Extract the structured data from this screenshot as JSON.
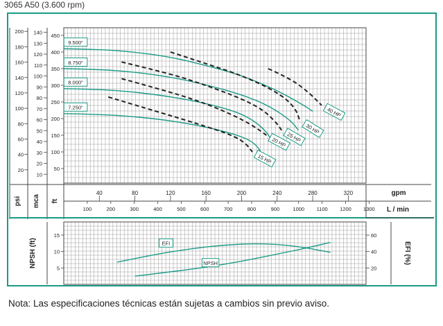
{
  "title": "3065 A50 (3.600 rpm)",
  "note": "Nota: Las especificaciones técnicas están sujetas a cambios sin previo aviso.",
  "chart_data": {
    "type": "line",
    "axes": {
      "left_psi": {
        "label": "psi",
        "ticks": [
          20,
          40,
          60,
          80,
          100,
          120,
          140,
          160,
          180,
          200
        ]
      },
      "left_mca": {
        "label": "mca",
        "ticks": [
          10,
          20,
          30,
          40,
          50,
          60,
          70,
          80,
          90,
          100,
          110,
          120,
          130,
          140
        ]
      },
      "left_ft": {
        "label": "ft",
        "ticks": [
          50,
          100,
          150,
          200,
          250,
          300,
          350,
          400,
          450
        ]
      },
      "x_gpm": {
        "label": "gpm",
        "ticks": [
          40,
          80,
          120,
          160,
          200,
          240,
          280,
          320
        ],
        "range": [
          0,
          340
        ]
      },
      "x_lmin": {
        "label": "L / min",
        "ticks": [
          100,
          200,
          300,
          400,
          500,
          600,
          700,
          800,
          900,
          1000,
          1100,
          1200,
          1300
        ]
      },
      "npsh": {
        "label": "NPSH (ft)",
        "ticks": [
          5,
          10,
          15
        ],
        "range": [
          0,
          19
        ]
      },
      "efi": {
        "label": "EFI (%)",
        "ticks": [
          20,
          40,
          60
        ],
        "range": [
          0,
          76
        ]
      }
    },
    "impeller_series": [
      {
        "name": "9.500\"",
        "x": [
          0,
          40,
          80,
          120,
          160,
          200,
          240,
          270,
          280
        ],
        "y": [
          410,
          408,
          400,
          385,
          360,
          330,
          285,
          240,
          222
        ]
      },
      {
        "name": "8.750\"",
        "x": [
          0,
          40,
          80,
          120,
          160,
          200,
          230,
          255,
          264
        ],
        "y": [
          350,
          348,
          340,
          325,
          302,
          272,
          240,
          195,
          165
        ]
      },
      {
        "name": "8.000\"",
        "x": [
          0,
          40,
          80,
          120,
          160,
          195,
          215,
          230,
          234
        ],
        "y": [
          290,
          288,
          280,
          266,
          246,
          220,
          192,
          155,
          130
        ]
      },
      {
        "name": "7.250\"",
        "x": [
          0,
          40,
          80,
          120,
          160,
          190,
          210,
          220,
          222
        ],
        "y": [
          215,
          213,
          206,
          194,
          175,
          155,
          135,
          110,
          95
        ]
      }
    ],
    "power_series": [
      {
        "name": "40 HP",
        "x": [
          230,
          255,
          275,
          290
        ],
        "y": [
          350,
          320,
          280,
          240
        ]
      },
      {
        "name": "30 HP",
        "x": [
          120,
          160,
          200,
          240,
          260,
          266
        ],
        "y": [
          400,
          365,
          330,
          280,
          235,
          190
        ]
      },
      {
        "name": "25 HP",
        "x": [
          65,
          120,
          160,
          200,
          225,
          240,
          245
        ],
        "y": [
          370,
          335,
          300,
          260,
          225,
          185,
          165
        ]
      },
      {
        "name": "20 HP",
        "x": [
          65,
          120,
          160,
          195,
          215,
          228
        ],
        "y": [
          320,
          280,
          245,
          205,
          175,
          150
        ]
      },
      {
        "name": "15 HP",
        "x": [
          50,
          100,
          150,
          190,
          205,
          212
        ],
        "y": [
          265,
          225,
          185,
          150,
          125,
          100
        ]
      }
    ],
    "npsh_series": {
      "name": "NPSH",
      "x": [
        80,
        120,
        160,
        200,
        240,
        280,
        300
      ],
      "y": [
        2.5,
        3.8,
        5.2,
        7,
        9.2,
        11.5,
        12.8
      ]
    },
    "efi_series": {
      "name": "EFI",
      "x": [
        60,
        100,
        140,
        180,
        220,
        260,
        300
      ],
      "y": [
        27,
        36,
        43,
        48,
        50,
        47,
        39
      ]
    }
  }
}
